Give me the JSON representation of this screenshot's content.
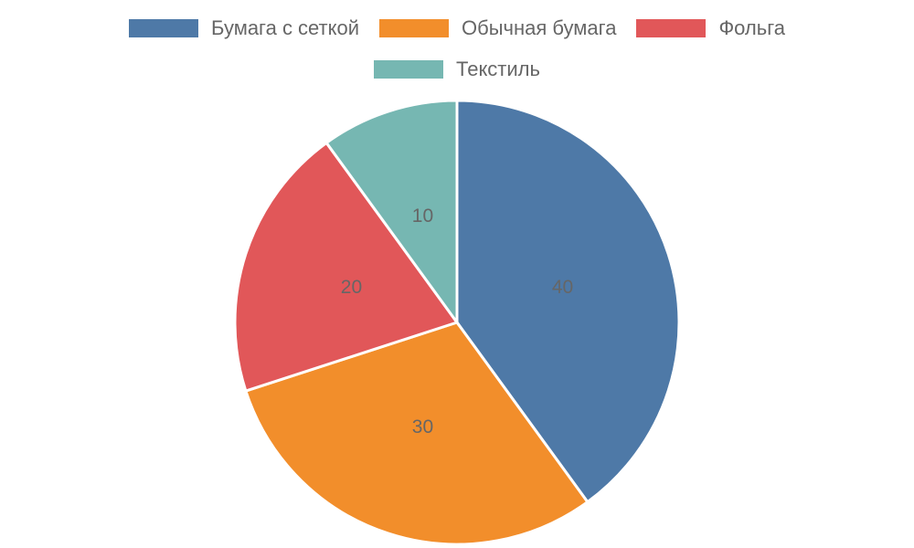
{
  "chart_data": {
    "type": "pie",
    "categories": [
      "Бумага с сеткой",
      "Обычная бумага",
      "Фольга",
      "Текстиль"
    ],
    "values": [
      40,
      30,
      20,
      10
    ],
    "colors": [
      "#4e79a7",
      "#f28e2b",
      "#e15759",
      "#76b7b2"
    ],
    "legend": "top"
  }
}
